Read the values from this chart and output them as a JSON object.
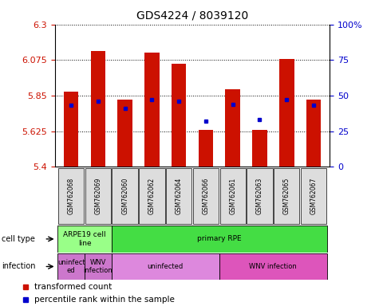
{
  "title": "GDS4224 / 8039120",
  "samples": [
    "GSM762068",
    "GSM762069",
    "GSM762060",
    "GSM762062",
    "GSM762064",
    "GSM762066",
    "GSM762061",
    "GSM762063",
    "GSM762065",
    "GSM762067"
  ],
  "red_values": [
    5.875,
    6.13,
    5.825,
    6.12,
    6.05,
    5.635,
    5.89,
    5.635,
    6.08,
    5.825
  ],
  "blue_values_pct": [
    43,
    46,
    41,
    47,
    46,
    32,
    44,
    33,
    47,
    43
  ],
  "ymin": 5.4,
  "ymax": 6.3,
  "yticks": [
    5.4,
    5.625,
    5.85,
    6.075,
    6.3
  ],
  "right_yticks_pct": [
    0,
    25,
    50,
    75,
    100
  ],
  "right_ytick_labels": [
    "0",
    "25",
    "50",
    "75",
    "100%"
  ],
  "bar_color": "#cc1100",
  "dot_color": "#0000cc",
  "bg_color": "#ffffff",
  "cell_type_spans": [
    [
      0,
      2,
      "#99ff88",
      "ARPE19 cell\nline"
    ],
    [
      2,
      10,
      "#44dd44",
      "primary RPE"
    ]
  ],
  "infection_spans": [
    [
      0,
      1,
      "#cc77cc",
      "uninfect\ned"
    ],
    [
      1,
      2,
      "#cc77cc",
      "WNV\ninfection"
    ],
    [
      2,
      6,
      "#dd88dd",
      "uninfected"
    ],
    [
      6,
      10,
      "#dd55bb",
      "WNV infection"
    ]
  ],
  "left_label_celltype": "cell type",
  "left_label_infection": "infection",
  "legend_red": "transformed count",
  "legend_blue": "percentile rank within the sample",
  "bar_width": 0.55,
  "bar_base": 5.4
}
